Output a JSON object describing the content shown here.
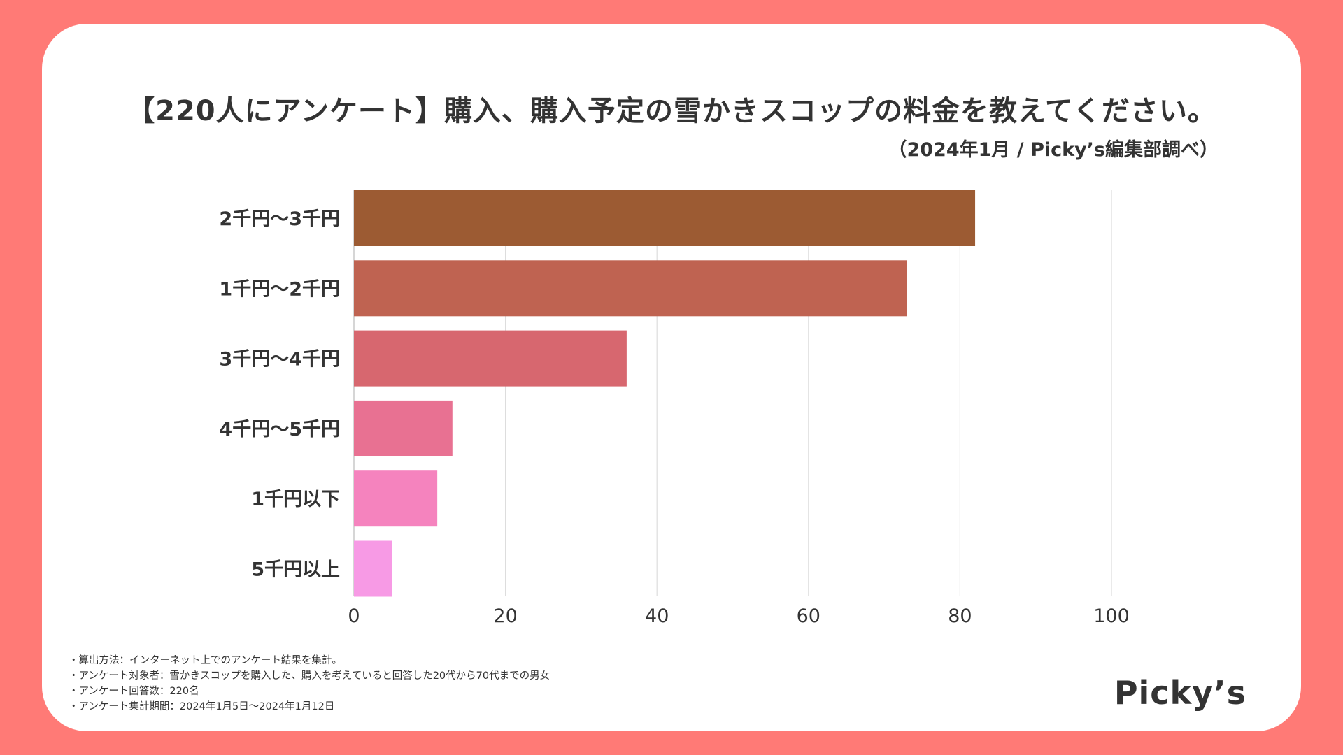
{
  "header": {
    "title": "【220人にアンケート】購入、購入予定の雪かきスコップの料金を教えてください。",
    "subtitle": "（2024年1月 / Picky’s編集部調べ）"
  },
  "chart_data": {
    "type": "bar",
    "orientation": "horizontal",
    "title": "【220人にアンケート】購入、購入予定の雪かきスコップの料金を教えてください。",
    "categories": [
      "2千円〜3千円",
      "1千円〜2千円",
      "3千円〜4千円",
      "4千円〜5千円",
      "1千円以下",
      "5千円以上"
    ],
    "values": [
      82,
      73,
      36,
      13,
      11,
      5
    ],
    "colors": [
      "#9C5B33",
      "#BF6351",
      "#D7676F",
      "#E87192",
      "#F583BE",
      "#F79AE5"
    ],
    "xlim": [
      0,
      100
    ],
    "xticks": [
      0,
      20,
      40,
      60,
      80,
      100
    ],
    "xlabel": "",
    "ylabel": "",
    "grid": true
  },
  "notes": [
    "・算出方法：インターネット上でのアンケート結果を集計。",
    "・アンケート対象者：雪かきスコップを購入した、購入を考えていると回答した20代から70代までの男女",
    "・アンケート回答数：220名",
    "・アンケート集計期間：2024年1月5日〜2024年1月12日"
  ],
  "logo": {
    "text": "Picky’s"
  },
  "colors": {
    "frame": "#FF7A76",
    "card": "#FFFFFF",
    "grid": "#DDDDDD"
  }
}
